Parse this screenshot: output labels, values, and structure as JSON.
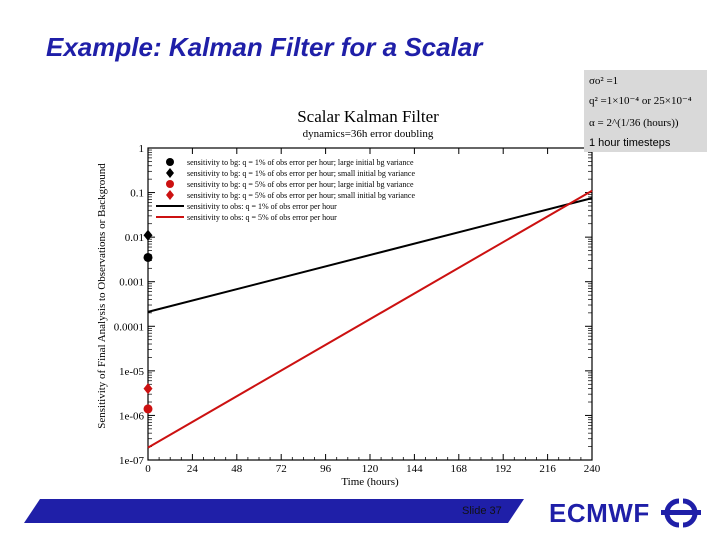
{
  "slide": {
    "title": "Example: Kalman Filter for a Scalar",
    "number_label": "Slide 37",
    "brand": "ECMWF"
  },
  "params_box": {
    "line1": "σo² =1",
    "line2": "q² =1×10⁻⁴  or  25×10⁻⁴",
    "line3": "α = 2^(1/36 (hours))",
    "line4": "1 hour timesteps"
  },
  "colors": {
    "title_blue": "#1f1fa8",
    "series_black": "#000000",
    "series_red": "#cc1111",
    "params_bg": "#d9d9d9"
  },
  "icons": {
    "logo": "ecmwf-logo-icon"
  },
  "chart_data": {
    "type": "line",
    "title": "Scalar Kalman Filter",
    "subtitle": "dynamics=36h error doubling",
    "xlabel": "Time (hours)",
    "ylabel": "Sensitivity of Final Analysis to Observations or Background",
    "xlim": [
      0,
      240
    ],
    "ylim": [
      1e-07,
      1
    ],
    "yscale": "log",
    "xticks": [
      "0",
      "24",
      "48",
      "72",
      "96",
      "120",
      "144",
      "168",
      "192",
      "216",
      "240"
    ],
    "yticks": [
      "1e-07",
      "1e-06",
      "1e-05",
      "0.0001",
      "0.001",
      "0.01",
      "0.1",
      "1"
    ],
    "grid": false,
    "legend_position": "top-left",
    "series": [
      {
        "name": "sensitivity to bg: q = 1% of obs error per hour; large initial bg variance",
        "marker": "circle",
        "color": "#000000",
        "points": [
          [
            0,
            0.0035
          ]
        ]
      },
      {
        "name": "sensitivity to bg: q = 1% of obs error per hour; small initial bg variance",
        "marker": "diamond",
        "color": "#000000",
        "points": [
          [
            0,
            0.011
          ]
        ]
      },
      {
        "name": "sensitivity to bg: q = 5% of obs error per hour; large initial bg variance",
        "marker": "circle",
        "color": "#cc1111",
        "points": [
          [
            0,
            1.4e-06
          ]
        ]
      },
      {
        "name": "sensitivity to bg: q = 5% of obs error per hour; small initial bg variance",
        "marker": "diamond",
        "color": "#cc1111",
        "points": [
          [
            0,
            4e-06
          ]
        ]
      },
      {
        "name": "sensitivity to obs: q = 1% of obs error per hour",
        "marker": "line",
        "color": "#000000",
        "points": [
          [
            0,
            0.00021
          ],
          [
            240,
            0.075
          ]
        ]
      },
      {
        "name": "sensitivity to obs: q = 5% of obs error per hour",
        "marker": "line",
        "color": "#cc1111",
        "points": [
          [
            0,
            1.9e-07
          ],
          [
            240,
            0.11
          ]
        ]
      }
    ]
  }
}
